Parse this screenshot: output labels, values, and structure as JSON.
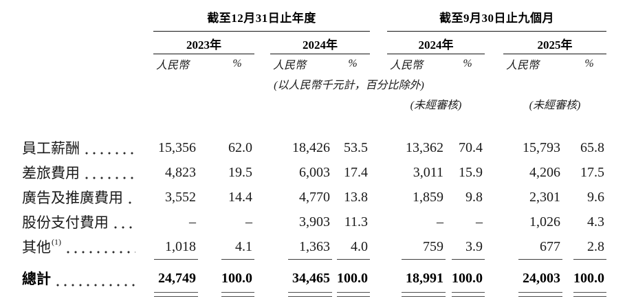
{
  "table": {
    "groups": [
      {
        "title": "截至12月31日止年度",
        "years": [
          "2023年",
          "2024年"
        ]
      },
      {
        "title": "截至9月30日止九個月",
        "years": [
          "2024年",
          "2025年"
        ]
      }
    ],
    "col_headers": {
      "rmb": "人民幣",
      "pct": "%"
    },
    "notes": {
      "units": "(以人民幣千元計，百分比除外)",
      "unaudited": "(未經審核)"
    },
    "rows": [
      {
        "label": "員工薪酬",
        "sup": "",
        "values": [
          "15,356",
          "62.0",
          "18,426",
          "53.5",
          "13,362",
          "70.4",
          "15,793",
          "65.8"
        ]
      },
      {
        "label": "差旅費用",
        "sup": "",
        "values": [
          "4,823",
          "19.5",
          "6,003",
          "17.4",
          "3,011",
          "15.9",
          "4,206",
          "17.5"
        ]
      },
      {
        "label": "廣告及推廣費用",
        "sup": "",
        "values": [
          "3,552",
          "14.4",
          "4,770",
          "13.8",
          "1,859",
          "9.8",
          "2,301",
          "9.6"
        ]
      },
      {
        "label": "股份支付費用",
        "sup": "",
        "values": [
          "–",
          "–",
          "3,903",
          "11.3",
          "–",
          "–",
          "1,026",
          "4.3"
        ]
      },
      {
        "label": "其他",
        "sup": "(1)",
        "values": [
          "1,018",
          "4.1",
          "1,363",
          "4.0",
          "759",
          "3.9",
          "677",
          "2.8"
        ]
      }
    ],
    "total": {
      "label": "總計",
      "values": [
        "24,749",
        "100.0",
        "34,465",
        "100.0",
        "18,991",
        "100.0",
        "24,003",
        "100.0"
      ]
    }
  }
}
